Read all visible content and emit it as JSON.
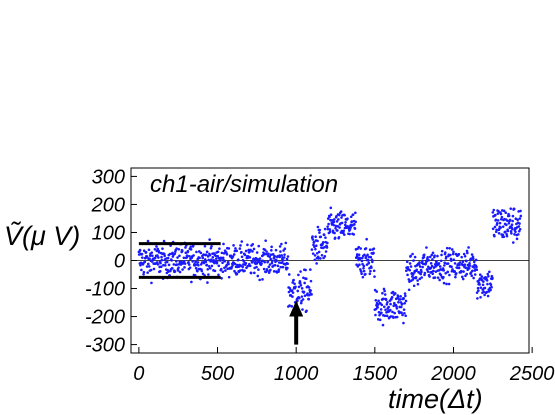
{
  "chart_data": {
    "type": "scatter",
    "title": "",
    "annotation": "ch1-air/simulation",
    "xlabel": "time(Δt)",
    "ylabel": "Ṽ(μ V)",
    "xlim": [
      -50,
      2480
    ],
    "ylim": [
      -330,
      330
    ],
    "x_ticks": [
      0,
      500,
      1000,
      1500,
      2000,
      2500
    ],
    "y_ticks": [
      300,
      200,
      100,
      0,
      -100,
      -200,
      -300
    ],
    "grid": false,
    "legend": "none",
    "point_color": "#1a1aff",
    "zero_line": true,
    "threshold_lines": [
      {
        "x_range": [
          0,
          520
        ],
        "y": 60
      },
      {
        "x_range": [
          0,
          520
        ],
        "y": -60
      }
    ],
    "arrow": {
      "x": 1000,
      "y_from": -300,
      "y_to": -150
    },
    "series": [
      {
        "points_by_time_segment": [
          {
            "x_range": [
              0,
              520
            ],
            "mean": 0,
            "spread": 55
          },
          {
            "x_range": [
              520,
              950
            ],
            "mean": 0,
            "spread": 50
          },
          {
            "x_range": [
              950,
              1100
            ],
            "mean": -110,
            "spread": 65
          },
          {
            "x_range": [
              1100,
              1200
            ],
            "mean": 50,
            "spread": 60
          },
          {
            "x_range": [
              1200,
              1380
            ],
            "mean": 120,
            "spread": 50
          },
          {
            "x_range": [
              1380,
              1500
            ],
            "mean": 0,
            "spread": 55
          },
          {
            "x_range": [
              1500,
              1700
            ],
            "mean": -160,
            "spread": 55
          },
          {
            "x_range": [
              1700,
              1800
            ],
            "mean": -40,
            "spread": 50
          },
          {
            "x_range": [
              1800,
              2150
            ],
            "mean": -15,
            "spread": 50
          },
          {
            "x_range": [
              2150,
              2250
            ],
            "mean": -80,
            "spread": 50
          },
          {
            "x_range": [
              2250,
              2430
            ],
            "mean": 130,
            "spread": 60
          }
        ]
      }
    ]
  }
}
